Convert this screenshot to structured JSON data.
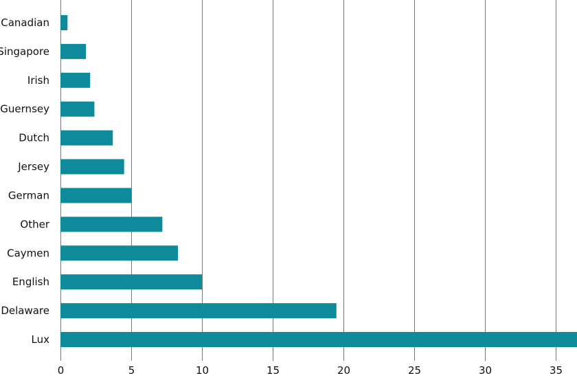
{
  "chart_data": {
    "type": "bar",
    "orientation": "horizontal",
    "categories": [
      "Canadian",
      "Singapore",
      "Irish",
      "Guernsey",
      "Dutch",
      "Jersey",
      "German",
      "Other",
      "Caymen",
      "English",
      "Delaware",
      "Lux"
    ],
    "values": [
      0.5,
      1.8,
      2.1,
      2.4,
      3.7,
      4.5,
      5.0,
      7.2,
      8.3,
      10.0,
      19.5,
      37.5
    ],
    "title": "",
    "xlabel": "",
    "ylabel": "",
    "xlim": [
      0,
      36.5
    ],
    "xticks": [
      0,
      5,
      10,
      15,
      20,
      25,
      30,
      35
    ],
    "xtick_labels": [
      "0",
      "5",
      "10",
      "15",
      "20",
      "25",
      "30",
      "35"
    ],
    "grid": "vertical",
    "legend": "none",
    "bar_color": "#0e8a9a",
    "grid_color": "#555555"
  }
}
